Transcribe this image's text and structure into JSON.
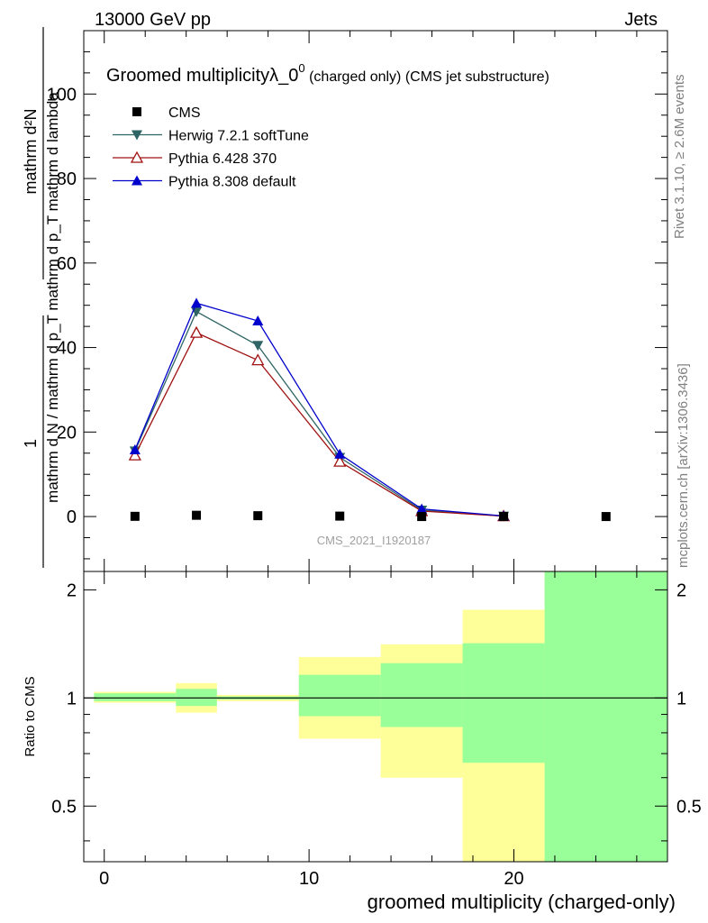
{
  "header": {
    "left": "13000 GeV pp",
    "right": "Jets"
  },
  "side_text": {
    "rivet": "Rivet 3.1.10, ≥ 2.6M events",
    "mcplots": "mcplots.cern.ch [arXiv:1306.3436]"
  },
  "watermark": "CMS_2021_I1920187",
  "chart_data": [
    {
      "type": "line",
      "title_main": "Groomed multiplicityλ_0",
      "title_sup": "0",
      "title_rest": " (charged only) (CMS jet substructure)",
      "ylabel_numerator": "1",
      "ylabel_numerator_top": "mathrm d²N",
      "ylabel_denominator": "mathrm d N / mathrm d p_T mathrm d p_T mathrm d lambda",
      "ylabel_full": "1 / (mathrm d N / mathrm d p_T) · mathrm d²N / (mathrm d p_T mathrm d lambda)",
      "ylim": [
        -13,
        115
      ],
      "yticks": [
        0,
        20,
        40,
        60,
        80,
        100
      ],
      "xlim": [
        -1,
        27.5
      ],
      "legend_position": "top-left",
      "series": [
        {
          "name": "CMS",
          "marker": "square-filled",
          "color": "#000000",
          "x": [
            1.5,
            4.5,
            7.5,
            11.5,
            15.5,
            19.5,
            24.5
          ],
          "y": [
            0.05,
            0.3,
            0.2,
            0.1,
            0.0,
            0.0,
            0.0
          ]
        },
        {
          "name": "Herwig 7.2.1 softTune",
          "marker": "triangle-down-filled",
          "color": "#2e6464",
          "x": [
            1.5,
            4.5,
            7.5,
            11.5,
            15.5,
            19.5
          ],
          "y": [
            15.5,
            48.5,
            40.5,
            14.0,
            1.5,
            0.1
          ]
        },
        {
          "name": "Pythia 6.428 370",
          "marker": "triangle-up-open",
          "color": "#a01010",
          "x": [
            1.5,
            4.5,
            7.5,
            11.5,
            15.5,
            19.5
          ],
          "y": [
            14.5,
            43.5,
            37.0,
            13.0,
            1.3,
            0.1
          ]
        },
        {
          "name": "Pythia 8.308 default",
          "marker": "triangle-up-filled",
          "color": "#0000cc",
          "x": [
            1.5,
            4.5,
            7.5,
            11.5,
            15.5,
            19.5
          ],
          "y": [
            15.8,
            50.5,
            46.3,
            14.8,
            1.8,
            0.15
          ]
        }
      ]
    },
    {
      "type": "area",
      "ylabel": "Ratio to CMS",
      "xlabel": "groomed multiplicity (charged-only)",
      "xlim": [
        -1,
        27.5
      ],
      "xticks": [
        0,
        10,
        20
      ],
      "ylim": [
        0.35,
        2.25
      ],
      "yticks": [
        0.5,
        1,
        2
      ],
      "ytick_labels": [
        "0.5",
        "1",
        "2"
      ],
      "bands": [
        {
          "x": [
            -0.5,
            3.5
          ],
          "yellow": [
            0.97,
            1.04
          ],
          "green": [
            0.98,
            1.03
          ]
        },
        {
          "x": [
            3.5,
            5.5
          ],
          "yellow": [
            0.91,
            1.1
          ],
          "green": [
            0.95,
            1.06
          ]
        },
        {
          "x": [
            5.5,
            9.5
          ],
          "yellow": [
            0.98,
            1.02
          ],
          "green": [
            0.99,
            1.01
          ]
        },
        {
          "x": [
            9.5,
            13.5
          ],
          "yellow": [
            0.77,
            1.3
          ],
          "green": [
            0.89,
            1.16
          ]
        },
        {
          "x": [
            13.5,
            17.5
          ],
          "yellow": [
            0.6,
            1.41
          ],
          "green": [
            0.83,
            1.25
          ]
        },
        {
          "x": [
            17.5,
            21.5
          ],
          "yellow": [
            0.35,
            1.76
          ],
          "green": [
            0.66,
            1.42
          ]
        },
        {
          "x": [
            21.5,
            27.5
          ],
          "yellow": [
            0.35,
            2.25
          ],
          "green": [
            0.35,
            2.25
          ]
        }
      ],
      "reference_line": 1
    }
  ]
}
